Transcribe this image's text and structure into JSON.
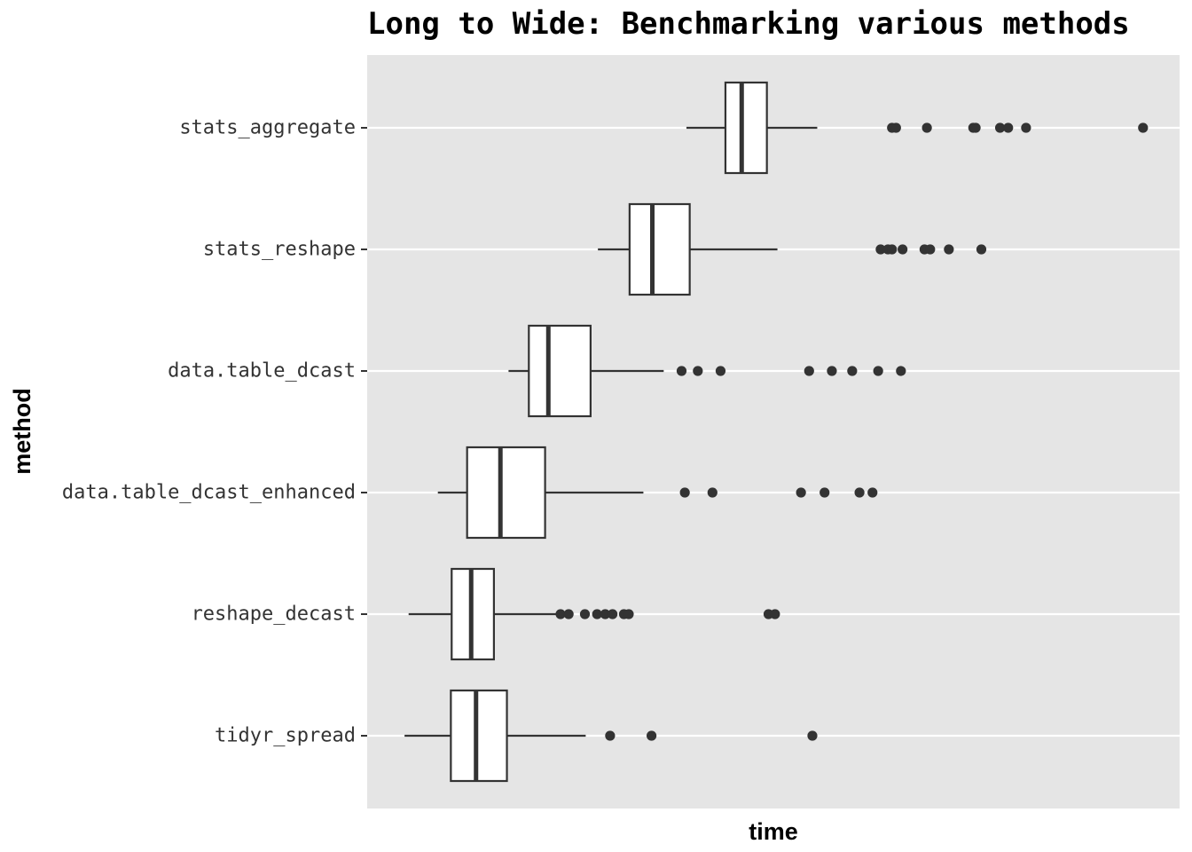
{
  "chart_data": {
    "type": "boxplot",
    "title": "Long to Wide: Benchmarking various methods",
    "xlabel": "time",
    "ylabel": "method",
    "xlim": [
      0,
      100
    ],
    "x_tick_labels_shown": false,
    "grid": true,
    "legend": "none",
    "colors": {
      "panel_background": "#e5e5e5",
      "gridline": "#ffffff",
      "box_fill": "#ffffff",
      "box_stroke": "#333333",
      "outlier": "#333333",
      "text": "#333333"
    },
    "series": [
      {
        "name": "stats_aggregate",
        "whisker_low": 39.3,
        "q1": 44.1,
        "median": 46.1,
        "q3": 49.2,
        "whisker_high": 55.4,
        "outliers": [
          64.6,
          65.1,
          68.9,
          74.6,
          74.9,
          77.9,
          78.9,
          81.1,
          95.5
        ]
      },
      {
        "name": "stats_reshape",
        "whisker_low": 28.4,
        "q1": 32.3,
        "median": 35.1,
        "q3": 39.7,
        "whisker_high": 50.5,
        "outliers": [
          63.2,
          64.1,
          64.6,
          65.9,
          68.6,
          69.3,
          71.6,
          75.6
        ]
      },
      {
        "name": "data.table_dcast",
        "whisker_low": 17.4,
        "q1": 19.9,
        "median": 22.3,
        "q3": 27.5,
        "whisker_high": 36.5,
        "outliers": [
          38.7,
          40.7,
          43.5,
          54.4,
          57.2,
          59.7,
          62.9,
          65.7
        ]
      },
      {
        "name": "data.table_dcast_enhanced",
        "whisker_low": 8.7,
        "q1": 12.3,
        "median": 16.4,
        "q3": 21.9,
        "whisker_high": 34.0,
        "outliers": [
          39.1,
          42.5,
          53.4,
          56.3,
          60.6,
          62.2
        ]
      },
      {
        "name": "reshape_decast",
        "whisker_low": 5.1,
        "q1": 10.4,
        "median": 12.8,
        "q3": 15.6,
        "whisker_high": 23.2,
        "outliers": [
          23.8,
          24.8,
          26.8,
          28.3,
          29.3,
          30.2,
          31.6,
          32.2,
          49.4,
          50.2
        ]
      },
      {
        "name": "tidyr_spread",
        "whisker_low": 4.6,
        "q1": 10.3,
        "median": 13.4,
        "q3": 17.2,
        "whisker_high": 26.9,
        "outliers": [
          29.9,
          35.0,
          54.8
        ]
      }
    ]
  }
}
